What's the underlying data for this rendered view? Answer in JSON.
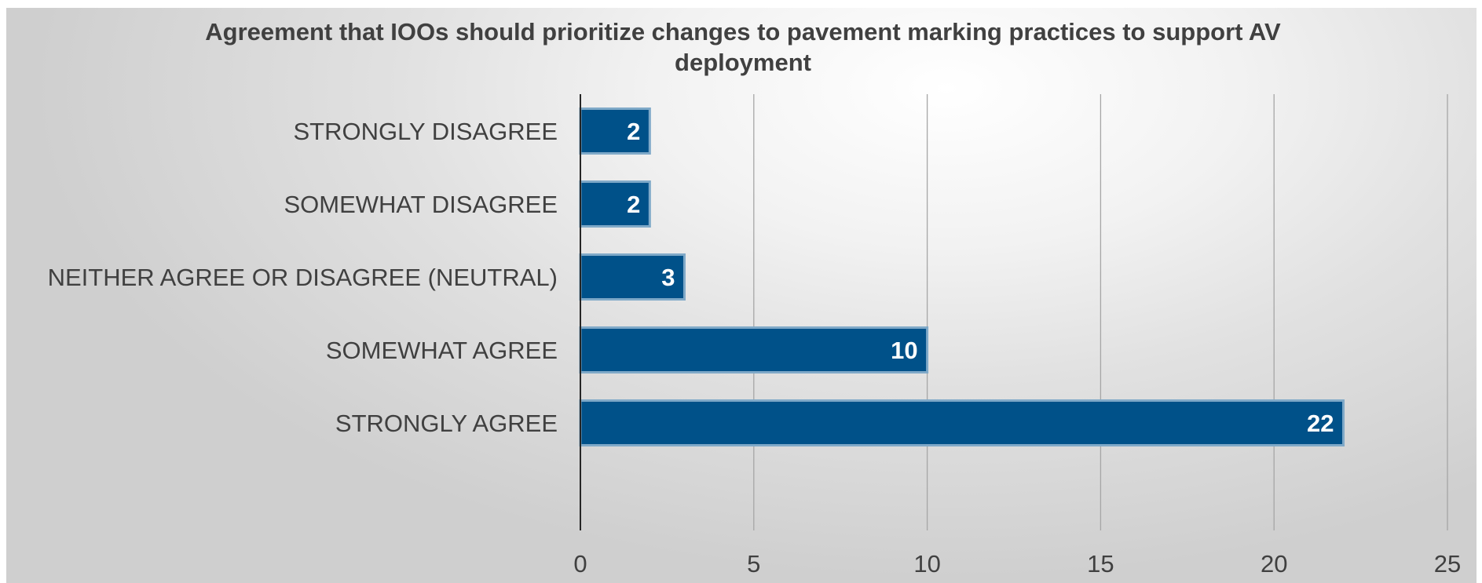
{
  "chart_data": {
    "type": "bar",
    "orientation": "horizontal",
    "title_lines": [
      "Agreement that IOOs should prioritize changes to pavement marking practices to support AV",
      "deployment"
    ],
    "categories": [
      "STRONGLY DISAGREE",
      "SOMEWHAT DISAGREE",
      "NEITHER AGREE OR DISAGREE (NEUTRAL)",
      "SOMEWHAT AGREE",
      "STRONGLY AGREE"
    ],
    "values": [
      2,
      2,
      3,
      10,
      22
    ],
    "xlim": [
      0,
      25
    ],
    "x_ticks": [
      "0",
      "5",
      "10",
      "15",
      "20",
      "25"
    ],
    "grid": "vertical",
    "legend": "none",
    "bar_color": "#005189",
    "bar_border_color": "#7fa9c8",
    "data_label_color": "#ffffff",
    "text_color": "#404040",
    "data_labels": "inside-end"
  }
}
